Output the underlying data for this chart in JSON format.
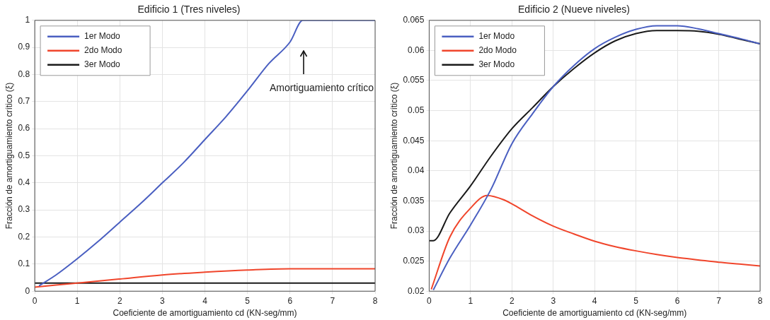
{
  "chart_data": [
    {
      "type": "line",
      "title": "Edificio 1 (Tres niveles)",
      "xlabel": "Coeficiente de amortiguamiento cd (KN-seg/mm)",
      "ylabel": "Fracción de amortiguamiento crítico (ξ)",
      "xlim": [
        0,
        8
      ],
      "ylim": [
        0,
        1
      ],
      "xticks": [
        0,
        1,
        2,
        3,
        4,
        5,
        6,
        7,
        8
      ],
      "yticks": [
        0,
        0.1,
        0.2,
        0.3,
        0.4,
        0.5,
        0.6,
        0.7,
        0.8,
        0.9,
        1
      ],
      "grid": true,
      "legend": "top left",
      "marker": "none",
      "annotations": [
        "Amortiguamiento crítico"
      ],
      "series": [
        {
          "name": "1er Modo",
          "color": "#4a5fc1",
          "x": [
            0.1,
            0.5,
            1,
            1.5,
            2,
            2.5,
            3,
            3.5,
            4,
            4.5,
            5,
            5.5,
            6,
            6.3,
            7,
            8
          ],
          "values": [
            0.02,
            0.06,
            0.12,
            0.185,
            0.255,
            0.325,
            0.4,
            0.475,
            0.56,
            0.645,
            0.74,
            0.84,
            0.92,
            1,
            1,
            1
          ]
        },
        {
          "name": "2do Modo",
          "color": "#f0452b",
          "x": [
            0,
            1,
            2,
            3,
            4,
            5,
            6,
            7,
            8
          ],
          "values": [
            0.015,
            0.03,
            0.045,
            0.06,
            0.07,
            0.078,
            0.083,
            0.083,
            0.083
          ]
        },
        {
          "name": "3er Modo",
          "color": "#1a1a1a",
          "x": [
            0,
            8
          ],
          "values": [
            0.03,
            0.03
          ]
        }
      ]
    },
    {
      "type": "line",
      "title": "Edificio 2 (Nueve niveles)",
      "xlabel": "Coeficiente de amortiguamiento cd (KN-seg/mm)",
      "ylabel": "Fracción de amortiguamiento crítico (ξ)",
      "xlim": [
        0,
        8
      ],
      "ylim": [
        0.02,
        0.065
      ],
      "xticks": [
        0,
        1,
        2,
        3,
        4,
        5,
        6,
        7,
        8
      ],
      "yticks": [
        0.02,
        0.025,
        0.03,
        0.035,
        0.04,
        0.045,
        0.05,
        0.055,
        0.06,
        0.065
      ],
      "grid": true,
      "legend": "top left",
      "marker": "none",
      "series": [
        {
          "name": "1er Modo",
          "color": "#4a5fc1",
          "x": [
            0.1,
            0.5,
            1,
            1.5,
            2,
            2.5,
            3,
            3.5,
            4,
            4.5,
            5,
            5.5,
            6,
            6.5,
            7,
            7.5,
            8
          ],
          "values": [
            0.0202,
            0.0255,
            0.031,
            0.037,
            0.0445,
            0.0495,
            0.054,
            0.0575,
            0.0603,
            0.0622,
            0.0635,
            0.0641,
            0.0641,
            0.0636,
            0.0628,
            0.062,
            0.0611
          ]
        },
        {
          "name": "2do Modo",
          "color": "#f0452b",
          "x": [
            0.05,
            0.5,
            1,
            1.4,
            1.8,
            2,
            2.5,
            3,
            3.5,
            4,
            4.5,
            5,
            5.5,
            6,
            6.5,
            7,
            7.5,
            8
          ],
          "values": [
            0.0203,
            0.029,
            0.0338,
            0.0359,
            0.0352,
            0.0345,
            0.0325,
            0.0308,
            0.0295,
            0.0283,
            0.0274,
            0.0267,
            0.0261,
            0.0256,
            0.0252,
            0.0248,
            0.0245,
            0.0242
          ]
        },
        {
          "name": "3er Modo",
          "color": "#1a1a1a",
          "x": [
            0,
            0.1,
            0.5,
            1,
            1.5,
            2,
            2.5,
            3,
            3.5,
            4,
            4.5,
            5,
            5.5,
            6,
            6.5,
            7,
            7.5,
            8
          ],
          "values": [
            0.0284,
            0.0284,
            0.033,
            0.0375,
            0.0425,
            0.047,
            0.0505,
            0.054,
            0.057,
            0.0596,
            0.0616,
            0.0628,
            0.0633,
            0.0633,
            0.0632,
            0.0627,
            0.0619,
            0.0611
          ]
        }
      ]
    }
  ]
}
